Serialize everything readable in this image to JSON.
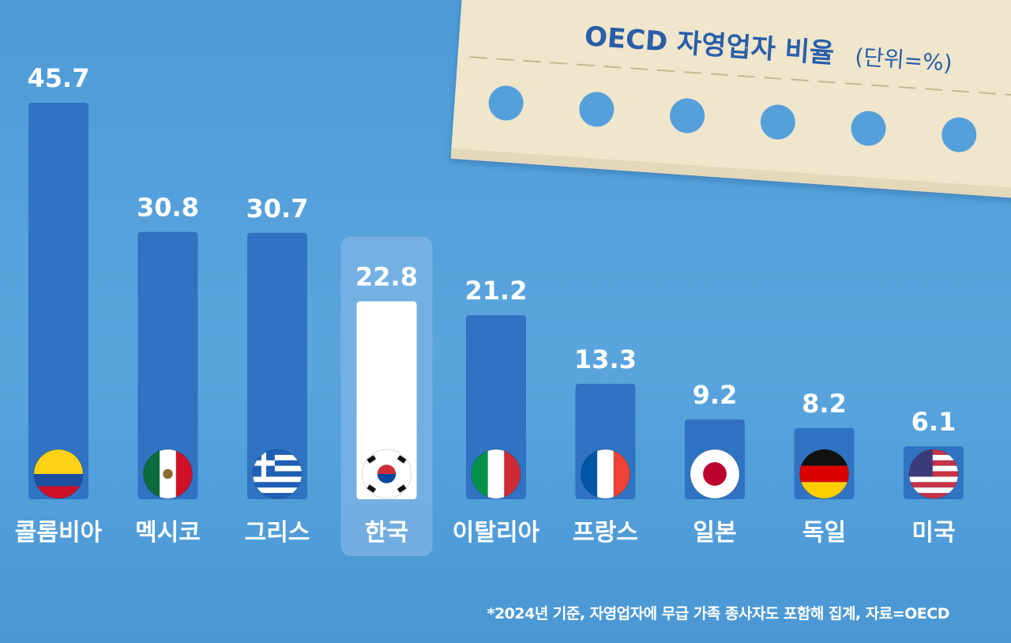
{
  "chart_data": {
    "type": "bar",
    "title": "OECD 자영업자 비율",
    "unit_label": "(단위=%)",
    "categories": [
      "콜롬비아",
      "멕시코",
      "그리스",
      "한국",
      "이탈리아",
      "프랑스",
      "일본",
      "독일",
      "미국"
    ],
    "values": [
      45.7,
      30.8,
      30.7,
      22.8,
      21.2,
      13.3,
      9.2,
      8.2,
      6.1
    ],
    "value_labels": [
      "45.7",
      "30.8",
      "30.7",
      "22.8",
      "21.2",
      "13.3",
      "9.2",
      "8.2",
      "6.1"
    ],
    "flags": [
      "colombia-flag-icon",
      "mexico-flag-icon",
      "greece-flag-icon",
      "korea-flag-icon",
      "italy-flag-icon",
      "france-flag-icon",
      "japan-flag-icon",
      "germany-flag-icon",
      "usa-flag-icon"
    ],
    "highlight_index": 3,
    "ylim": [
      0,
      45.7
    ],
    "grid": false,
    "legend": "none"
  },
  "footnote": "*2024년 기준, 자영업자에 무급 가족 종사자도 포함해 집계, 자료=OECD",
  "colors": {
    "background": "#559fdb",
    "bar": "#2f73c2",
    "bar_highlight": "#ffffff",
    "highlight_panel": "#7fb4e4",
    "paper": "#ece2c7",
    "title_text": "#2a5ea8",
    "label_text": "#ffffff"
  }
}
